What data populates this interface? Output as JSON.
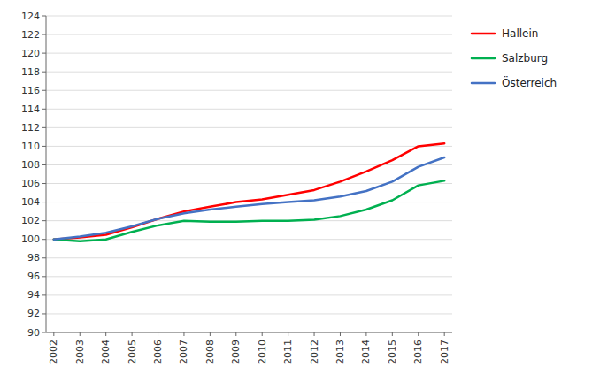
{
  "chart_data": {
    "type": "line",
    "x": [
      2002,
      2003,
      2004,
      2005,
      2006,
      2007,
      2008,
      2009,
      2010,
      2011,
      2012,
      2013,
      2014,
      2015,
      2016,
      2017
    ],
    "series": [
      {
        "name": "Hallein",
        "color": "#ff0000",
        "values": [
          100.0,
          100.2,
          100.5,
          101.3,
          102.2,
          103.0,
          103.5,
          104.0,
          104.3,
          104.8,
          105.3,
          106.2,
          107.3,
          108.5,
          110.0,
          110.3
        ]
      },
      {
        "name": "Salzburg",
        "color": "#00b050",
        "values": [
          100.0,
          99.8,
          100.0,
          100.8,
          101.5,
          102.0,
          101.9,
          101.9,
          102.0,
          102.0,
          102.1,
          102.5,
          103.2,
          104.2,
          105.8,
          106.3
        ]
      },
      {
        "name": "Österreich",
        "color": "#4472c4",
        "values": [
          100.0,
          100.3,
          100.7,
          101.4,
          102.2,
          102.8,
          103.2,
          103.5,
          103.8,
          104.0,
          104.2,
          104.6,
          105.2,
          106.2,
          107.8,
          108.8
        ]
      }
    ],
    "xlim": [
      2001.7,
      2017.3
    ],
    "xticks": [
      2002,
      2003,
      2004,
      2005,
      2006,
      2007,
      2008,
      2009,
      2010,
      2011,
      2012,
      2013,
      2014,
      2015,
      2016,
      2017
    ],
    "ylim": [
      90,
      124
    ],
    "yticks": [
      90,
      92,
      94,
      96,
      98,
      100,
      102,
      104,
      106,
      108,
      110,
      112,
      114,
      116,
      118,
      120,
      122,
      124
    ],
    "grid": true,
    "legend": "right"
  }
}
